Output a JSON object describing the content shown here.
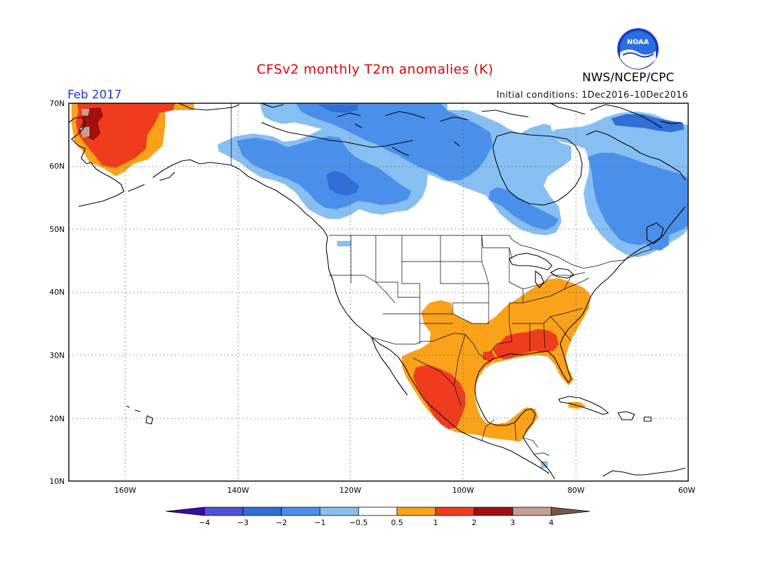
{
  "title": "CFSv2 monthly T2m anomalies (K)",
  "valid_month": "Feb 2017",
  "initial_conditions": "Initial conditions: 1Dec2016–10Dec2016",
  "agency": "NWS/NCEP/CPC",
  "logo_text": "NOAA",
  "map": {
    "lat_ticks": [
      "70N",
      "60N",
      "50N",
      "40N",
      "30N",
      "20N",
      "10N"
    ],
    "lon_ticks": [
      "160W",
      "140W",
      "120W",
      "100W",
      "80W",
      "60W"
    ]
  },
  "colorbar": {
    "labels": [
      "−4",
      "−3",
      "−2",
      "−1",
      "−0.5",
      "0.5",
      "1",
      "2",
      "3",
      "4"
    ],
    "colors": [
      "#3b0aa6",
      "#5050d8",
      "#2f6fd6",
      "#4a90ea",
      "#88bff2",
      "#ffffff",
      "#f9a21a",
      "#f03c1e",
      "#a01010",
      "#c3a092",
      "#7a5548"
    ]
  },
  "anomaly_colors": {
    "light_cold": "#88bff2",
    "cold": "#4a90ea",
    "deep_cold": "#2f6fd6",
    "warm": "#f9a21a",
    "hot": "#f03c1e",
    "very_hot": "#a01010",
    "extreme": "#c3a092"
  }
}
